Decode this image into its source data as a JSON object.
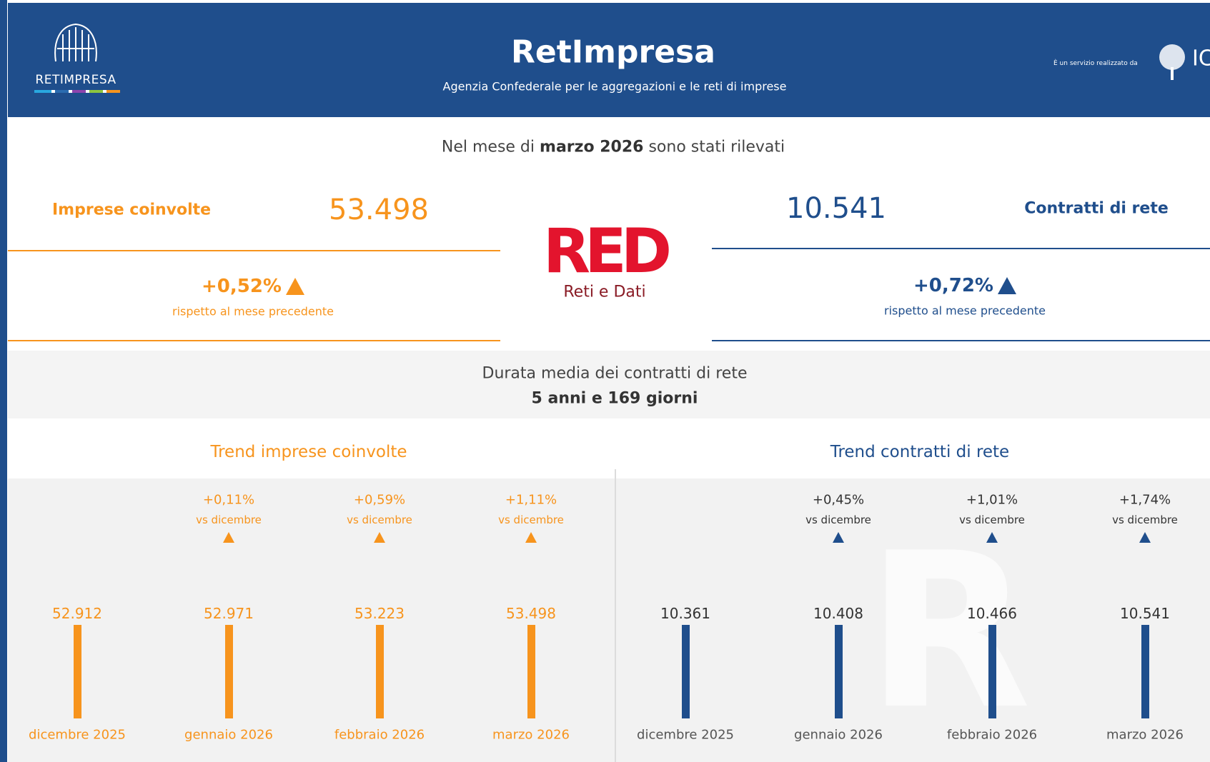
{
  "header": {
    "logo_text": "RETIMPRESA",
    "title": "RetImpresa",
    "subtitle": "Agenzia Confederale per le aggregazioni e le reti di imprese",
    "credit": "È un servizio realizzato da",
    "credit_logo": "IC"
  },
  "intro": {
    "before": "Nel mese di",
    "bold": "marzo 2026",
    "after": "sono stati rilevati"
  },
  "kpis": [
    {
      "label": "Imprese coinvolte",
      "value": "53.498",
      "change": "+0,52%",
      "note": "rispetto al mese precedente"
    },
    {
      "label": "Contratti di rete",
      "value": "10.541",
      "change": "+0,72%",
      "note": "rispetto al mese precedente"
    }
  ],
  "center_logo": {
    "mark": "RED",
    "text": "Reti e Dati"
  },
  "duration": {
    "title": "Durata media dei contratti di rete",
    "value": "5 anni e 169 giorni"
  },
  "trends": [
    {
      "title": "Trend imprese coinvolte",
      "points": [
        {
          "value": "52.912",
          "month": "dicembre 2025"
        },
        {
          "change": "+0,11%",
          "note": "vs dicembre",
          "value": "52.971",
          "month": "gennaio 2026"
        },
        {
          "change": "+0,59%",
          "note": "vs dicembre",
          "value": "53.223",
          "month": "febbraio 2026"
        },
        {
          "change": "+1,11%",
          "note": "vs dicembre",
          "value": "53.498",
          "month": "marzo 2026"
        }
      ]
    },
    {
      "title": "Trend contratti di rete",
      "points": [
        {
          "value": "10.361",
          "month": "dicembre 2025"
        },
        {
          "change": "+0,45%",
          "note": "vs dicembre",
          "value": "10.408",
          "month": "gennaio 2026"
        },
        {
          "change": "+1,01%",
          "note": "vs dicembre",
          "value": "10.466",
          "month": "febbraio 2026"
        },
        {
          "change": "+1,74%",
          "note": "vs dicembre",
          "value": "10.541",
          "month": "marzo 2026"
        }
      ]
    }
  ]
}
